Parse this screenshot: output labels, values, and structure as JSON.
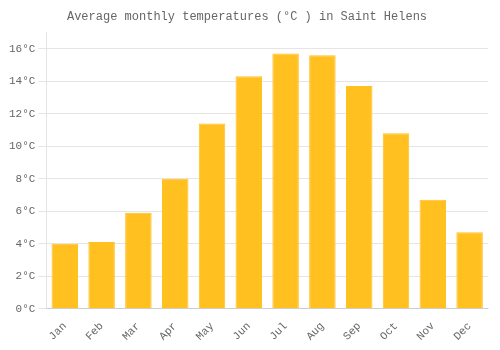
{
  "chart_data": {
    "type": "bar",
    "title": "Average monthly temperatures (°C ) in Saint Helens",
    "categories": [
      "Jan",
      "Feb",
      "Mar",
      "Apr",
      "May",
      "Jun",
      "Jul",
      "Aug",
      "Sep",
      "Oct",
      "Nov",
      "Dec"
    ],
    "values": [
      4.0,
      4.1,
      5.9,
      8.0,
      11.4,
      14.3,
      15.7,
      15.6,
      13.7,
      10.8,
      6.7,
      4.7
    ],
    "color": "#FFC020",
    "ylim": [
      0,
      17
    ],
    "yticks": [
      {
        "value": 0,
        "label": "0°C"
      },
      {
        "value": 2,
        "label": "2°C"
      },
      {
        "value": 4,
        "label": "4°C"
      },
      {
        "value": 6,
        "label": "6°C"
      },
      {
        "value": 8,
        "label": "8°C"
      },
      {
        "value": 10,
        "label": "10°C"
      },
      {
        "value": 12,
        "label": "12°C"
      },
      {
        "value": 14,
        "label": "14°C"
      },
      {
        "value": 16,
        "label": "16°C"
      }
    ],
    "grid": true
  }
}
